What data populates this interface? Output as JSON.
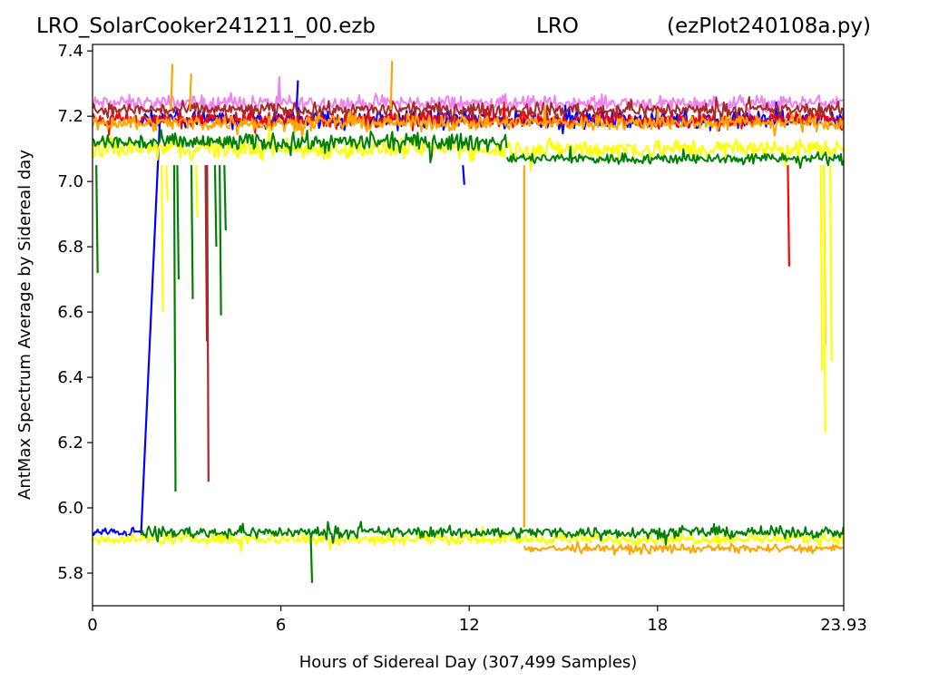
{
  "titles": {
    "left": "LRO_SolarCooker241211_00.ezb",
    "center": "LRO",
    "right": "(ezPlot240108a.py)"
  },
  "chart_data": {
    "type": "line",
    "xlabel": "Hours of Sidereal Day  (307,499 Samples)",
    "ylabel": "AntMax Spectrum Average by Sidereal day",
    "xlim": [
      0,
      23.93
    ],
    "ylim": [
      5.7,
      7.42
    ],
    "xticks": [
      0,
      6,
      12,
      18,
      23.93
    ],
    "xtick_labels": [
      "0",
      "6",
      "12",
      "18",
      "23.93"
    ],
    "yticks": [
      5.8,
      6.0,
      6.2,
      6.4,
      6.6,
      6.8,
      7.0,
      7.2,
      7.4
    ],
    "ytick_labels": [
      "5.8",
      "6.0",
      "6.2",
      "6.4",
      "6.6",
      "6.8",
      "7.0",
      "7.2",
      "7.4"
    ],
    "grid": false,
    "colors": {
      "blue": "#0000ff",
      "red": "#ff0000",
      "green": "#008000",
      "orange": "#ffa500",
      "yellow": "#ffff00",
      "brown": "#a52a2a",
      "violet": "#ee82ee"
    },
    "series": [
      {
        "color": "violet",
        "bands": [
          {
            "x": [
              0,
              23.93
            ],
            "center": 7.24,
            "spread": 0.035
          }
        ]
      },
      {
        "color": "blue",
        "bands": [
          {
            "x": [
              0,
              1.55
            ],
            "center": 5.925,
            "spread": 0.02
          },
          {
            "x": [
              1.55,
              23.93
            ],
            "center": 7.19,
            "spread": 0.04
          }
        ],
        "segments": [
          [
            [
              1.55,
              5.925
            ],
            [
              2.15,
              7.2
            ]
          ]
        ],
        "spikes": [
          {
            "x": 6.5,
            "y": 7.31
          },
          {
            "x": 11.8,
            "y": 6.99
          }
        ]
      },
      {
        "color": "red",
        "bands": [
          {
            "x": [
              0,
              23.93
            ],
            "center": 7.19,
            "spread": 0.035
          }
        ],
        "spikes": [
          {
            "x": 22.15,
            "y": 6.74
          }
        ]
      },
      {
        "color": "brown",
        "bands": [
          {
            "x": [
              0,
              23.93
            ],
            "center": 7.22,
            "spread": 0.03
          }
        ],
        "spikes": [
          {
            "x": 3.65,
            "y": 6.08
          },
          {
            "x": 3.6,
            "y": 6.51
          }
        ]
      },
      {
        "color": "orange",
        "bands": [
          {
            "x": [
              0,
              23.93
            ],
            "center": 7.18,
            "spread": 0.035
          },
          {
            "x": [
              13.75,
              23.93
            ],
            "center": 5.875,
            "spread": 0.02
          }
        ],
        "segments": [
          [
            [
              13.75,
              7.05
            ],
            [
              13.75,
              5.94
            ]
          ]
        ],
        "spikes": [
          {
            "x": 2.5,
            "y": 7.36
          },
          {
            "x": 9.5,
            "y": 7.37
          },
          {
            "x": 3.1,
            "y": 7.33
          },
          {
            "x": 23.3,
            "y": 6.5
          }
        ]
      },
      {
        "color": "yellow",
        "bands": [
          {
            "x": [
              0,
              23.93
            ],
            "center": 7.1,
            "spread": 0.045
          },
          {
            "x": [
              0,
              23.93
            ],
            "center": 5.905,
            "spread": 0.025
          }
        ],
        "spikes": [
          {
            "x": 2.2,
            "y": 6.6
          },
          {
            "x": 2.35,
            "y": 6.94
          },
          {
            "x": 3.3,
            "y": 6.89
          },
          {
            "x": 23.2,
            "y": 6.42
          },
          {
            "x": 23.3,
            "y": 6.23
          },
          {
            "x": 23.5,
            "y": 6.45
          }
        ]
      },
      {
        "color": "green",
        "bands": [
          {
            "x": [
              0,
              13.2
            ],
            "center": 7.12,
            "spread": 0.04
          },
          {
            "x": [
              1.55,
              23.93
            ],
            "center": 5.925,
            "spread": 0.025
          },
          {
            "x": [
              13.2,
              23.93
            ],
            "center": 7.07,
            "spread": 0.025
          }
        ],
        "spikes": [
          {
            "x": 0.12,
            "y": 6.72
          },
          {
            "x": 2.6,
            "y": 6.05
          },
          {
            "x": 2.7,
            "y": 6.7
          },
          {
            "x": 3.15,
            "y": 6.64
          },
          {
            "x": 3.9,
            "y": 6.8
          },
          {
            "x": 4.05,
            "y": 6.59
          },
          {
            "x": 4.2,
            "y": 6.85
          },
          {
            "x": 6.95,
            "y": 5.77
          }
        ]
      }
    ]
  }
}
